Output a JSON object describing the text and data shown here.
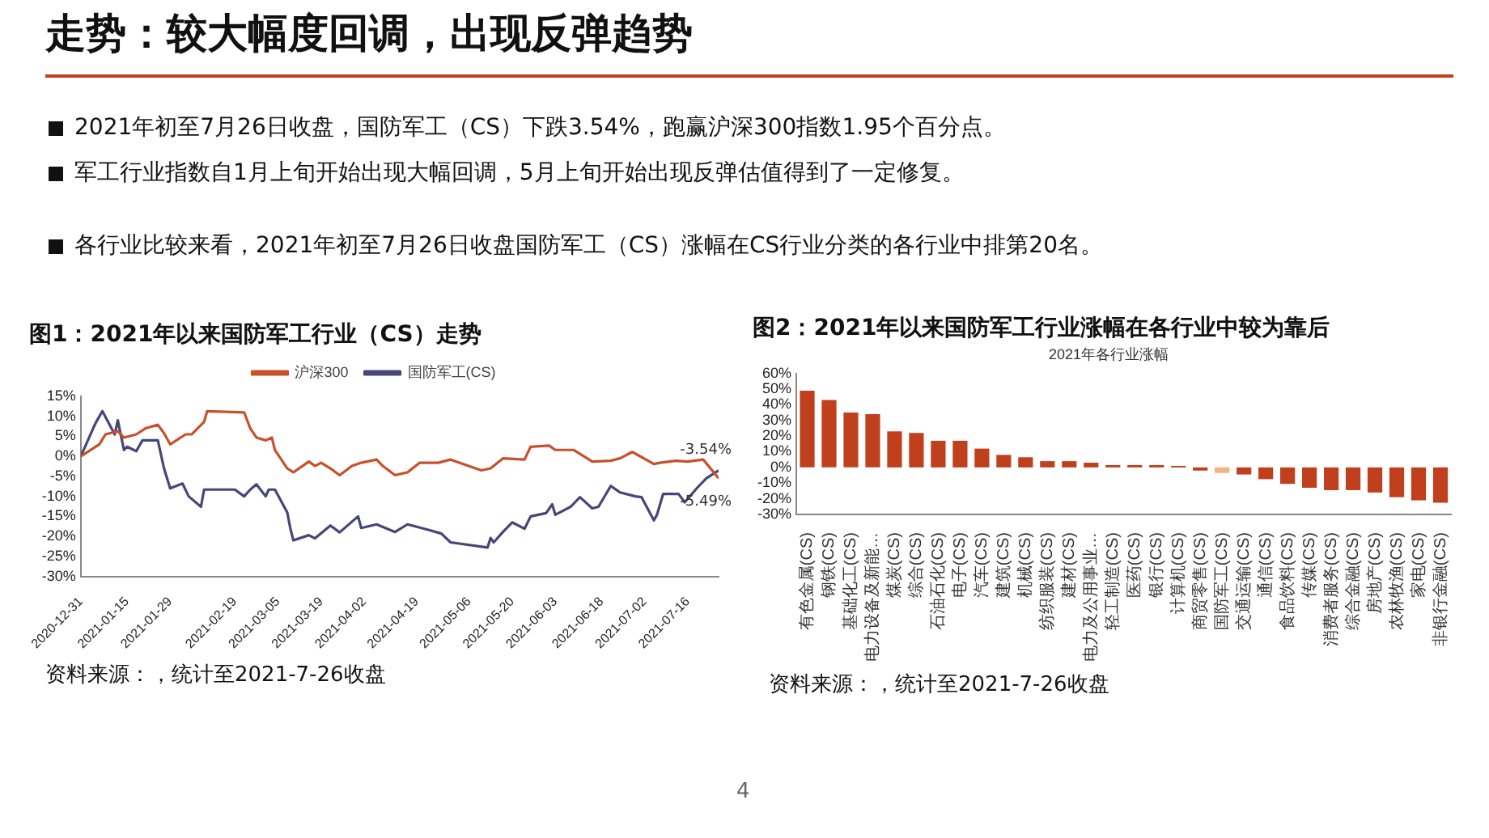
{
  "chart_data": [
    {
      "type": "other",
      "title": "走势：较大幅度回调，出现反弹趋势",
      "annotations": [
        "2021年初至7月26日收盘，国防军工（CS）下跌3.54%，跑赢沪深300指数1.95个百分点。",
        "军工行业指数自1月上旬开始出现大幅回调，5月上旬开始出现反弹估值得到了一定修复。",
        "各行业比较来看，2021年初至7月26日收盘国防军工（CS）涨幅在CS行业分类的各行业中排第20名。",
        "4"
      ]
    },
    {
      "type": "line",
      "title": "图1：2021年以来国防军工行业（CS）走势",
      "legend": "top",
      "xlim": [
        "2020-12-31",
        "2021-07-26"
      ],
      "ylim": [
        -30,
        15
      ],
      "xticks": [
        "2020-12-31",
        "2021-01-15",
        "2021-01-29",
        "2021-02-19",
        "2021-03-05",
        "2021-03-19",
        "2021-04-02",
        "2021-04-19",
        "2021-05-06",
        "2021-05-20",
        "2021-06-03",
        "2021-06-18",
        "2021-07-02",
        "2021-07-16"
      ],
      "yticks": [
        {
          "value": -30,
          "label": "-30%"
        },
        {
          "value": -25,
          "label": "-25%"
        },
        {
          "value": -20,
          "label": "-20%"
        },
        {
          "value": -15,
          "label": "-15%"
        },
        {
          "value": -10,
          "label": "-10%"
        },
        {
          "value": -5,
          "label": "-5%"
        },
        {
          "value": 0,
          "label": "0%"
        },
        {
          "value": 5,
          "label": "5%"
        },
        {
          "value": 10,
          "label": "10%"
        },
        {
          "value": 15,
          "label": "15%"
        }
      ],
      "series": [
        {
          "name": "沪深300",
          "color": "#c8502a",
          "x": [
            "2020-12-31",
            "2021-01-06",
            "2021-01-08",
            "2021-01-12",
            "2021-01-14",
            "2021-01-18",
            "2021-01-21",
            "2021-01-25",
            "2021-01-27",
            "2021-01-29",
            "2021-02-03",
            "2021-02-05",
            "2021-02-09",
            "2021-02-10",
            "2021-02-22",
            "2021-02-24",
            "2021-02-26",
            "2021-03-01",
            "2021-03-03",
            "2021-03-04",
            "2021-03-08",
            "2021-03-10",
            "2021-03-15",
            "2021-03-17",
            "2021-03-19",
            "2021-03-22",
            "2021-03-25",
            "2021-03-29",
            "2021-04-01",
            "2021-04-06",
            "2021-04-08",
            "2021-04-12",
            "2021-04-16",
            "2021-04-20",
            "2021-04-26",
            "2021-04-30",
            "2021-05-10",
            "2021-05-13",
            "2021-05-17",
            "2021-05-24",
            "2021-05-26",
            "2021-06-01",
            "2021-06-03",
            "2021-06-09",
            "2021-06-15",
            "2021-06-21",
            "2021-06-24",
            "2021-06-28",
            "2021-07-05",
            "2021-07-07",
            "2021-07-12",
            "2021-07-16",
            "2021-07-21",
            "2021-07-26"
          ],
          "values": [
            0,
            3,
            5.5,
            6.3,
            4.7,
            5.5,
            7,
            7.9,
            5.8,
            3,
            5.5,
            5.5,
            8.6,
            11.3,
            11,
            7,
            4.7,
            4,
            4.7,
            1.6,
            -3,
            -4,
            -1.3,
            -2.4,
            -1.6,
            -3,
            -4.7,
            -2.4,
            -1.6,
            -0.8,
            -2.4,
            -4.7,
            -4,
            -1.6,
            -1.6,
            -0.8,
            -3.5,
            -3,
            -0.5,
            -0.8,
            2.4,
            2.7,
            1.6,
            1.6,
            -1.3,
            -1.1,
            -0.5,
            1.1,
            -1.9,
            -1.6,
            -1.1,
            -1.3,
            -0.8,
            -5.49
          ]
        },
        {
          "name": "国防军工(CS)",
          "color": "#46467a",
          "x": [
            "2020-12-31",
            "2021-01-04",
            "2021-01-05",
            "2021-01-07",
            "2021-01-11",
            "2021-01-12",
            "2021-01-14",
            "2021-01-15",
            "2021-01-18",
            "2021-01-20",
            "2021-01-25",
            "2021-01-27",
            "2021-01-29",
            "2021-02-02",
            "2021-02-04",
            "2021-02-08",
            "2021-02-09",
            "2021-02-19",
            "2021-02-22",
            "2021-02-24",
            "2021-02-26",
            "2021-03-01",
            "2021-03-02",
            "2021-03-04",
            "2021-03-08",
            "2021-03-09",
            "2021-03-10",
            "2021-03-15",
            "2021-03-17",
            "2021-03-22",
            "2021-03-25",
            "2021-03-31",
            "2021-04-01",
            "2021-04-06",
            "2021-04-12",
            "2021-04-16",
            "2021-04-23",
            "2021-04-27",
            "2021-04-30",
            "2021-05-12",
            "2021-05-13",
            "2021-05-14",
            "2021-05-17",
            "2021-05-20",
            "2021-05-24",
            "2021-05-26",
            "2021-05-31",
            "2021-06-02",
            "2021-06-03",
            "2021-06-08",
            "2021-06-11",
            "2021-06-15",
            "2021-06-17",
            "2021-06-21",
            "2021-06-24",
            "2021-06-29",
            "2021-07-01",
            "2021-07-05",
            "2021-07-06",
            "2021-07-08",
            "2021-07-13",
            "2021-07-15",
            "2021-07-19",
            "2021-07-22",
            "2021-07-26"
          ],
          "values": [
            0,
            7,
            8.6,
            11.3,
            5.5,
            9,
            1.6,
            2.4,
            1.3,
            4,
            4,
            -3,
            -8,
            -6.8,
            -10,
            -12.6,
            -8.3,
            -8.3,
            -10,
            -8.3,
            -7,
            -10,
            -8.3,
            -8.3,
            -14,
            -18,
            -21,
            -19.7,
            -20.5,
            -17.3,
            -19,
            -15,
            -17.9,
            -17,
            -18.9,
            -17,
            -18.4,
            -19.3,
            -21.5,
            -22.8,
            -20.4,
            -21.5,
            -18.9,
            -16.5,
            -18.1,
            -15,
            -14.2,
            -12,
            -14.6,
            -12.6,
            -10.2,
            -13,
            -12.6,
            -7.4,
            -9,
            -10,
            -10.2,
            -16,
            -14.6,
            -9.4,
            -9.4,
            -11.5,
            -7.9,
            -5.5,
            -3.54
          ]
        }
      ],
      "annotations": [
        {
          "text": "-3.54%",
          "x": "2021-07-26",
          "y": -3.54
        },
        {
          "text": "-5.49%",
          "x": "2021-07-26",
          "y": -5.49
        },
        "资料来源：，统计至2021-7-26收盘"
      ]
    },
    {
      "type": "bar",
      "title": "图2：2021年以来国防军工行业涨幅在各行业中较为靠后",
      "subtitle": "2021年各行业涨幅",
      "ylim": [
        -30,
        60
      ],
      "yticks": [
        {
          "value": -30,
          "label": "-30%"
        },
        {
          "value": -20,
          "label": "-20%"
        },
        {
          "value": -10,
          "label": "-10%"
        },
        {
          "value": 0,
          "label": "0%"
        },
        {
          "value": 10,
          "label": "10%"
        },
        {
          "value": 20,
          "label": "20%"
        },
        {
          "value": 30,
          "label": "30%"
        },
        {
          "value": 40,
          "label": "40%"
        },
        {
          "value": 50,
          "label": "50%"
        },
        {
          "value": 60,
          "label": "60%"
        }
      ],
      "categories": [
        "有色金属(CS)",
        "钢铁(CS)",
        "基础化工(CS)",
        "电力设备及新能…",
        "煤炭(CS)",
        "综合(CS)",
        "石油石化(CS)",
        "电子(CS)",
        "汽车(CS)",
        "建筑(CS)",
        "机械(CS)",
        "纺织服装(CS)",
        "建材(CS)",
        "电力及公用事业…",
        "轻工制造(CS)",
        "医药(CS)",
        "银行(CS)",
        "计算机(CS)",
        "商贸零售(CS)",
        "国防军工(CS)",
        "交通运输(CS)",
        "通信(CS)",
        "食品饮料(CS)",
        "传媒(CS)",
        "消费者服务(CS)",
        "综合金融(CS)",
        "房地产(CS)",
        "农林牧渔(CS)",
        "家电(CS)",
        "非银行金融(CS)"
      ],
      "values": [
        49,
        43,
        35,
        34,
        23,
        22,
        17,
        17,
        12,
        8,
        6.5,
        4,
        4,
        3,
        1.5,
        1.5,
        1.5,
        1,
        -2,
        -3.54,
        -4.5,
        -7.5,
        -10.5,
        -13,
        -14.5,
        -14.5,
        -16,
        -19,
        -21,
        -22.5
      ],
      "colors": [
        "#c0401e",
        "#c0401e",
        "#c0401e",
        "#c0401e",
        "#c0401e",
        "#c0401e",
        "#c0401e",
        "#c0401e",
        "#c0401e",
        "#c0401e",
        "#c0401e",
        "#c0401e",
        "#c0401e",
        "#c0401e",
        "#c0401e",
        "#c0401e",
        "#c0401e",
        "#c0401e",
        "#c0401e",
        "#f4b183",
        "#c0401e",
        "#c0401e",
        "#c0401e",
        "#c0401e",
        "#c0401e",
        "#c0401e",
        "#c0401e",
        "#c0401e",
        "#c0401e",
        "#c0401e"
      ],
      "annotations": [
        "资料来源：，统计至2021-7-26收盘"
      ]
    }
  ]
}
